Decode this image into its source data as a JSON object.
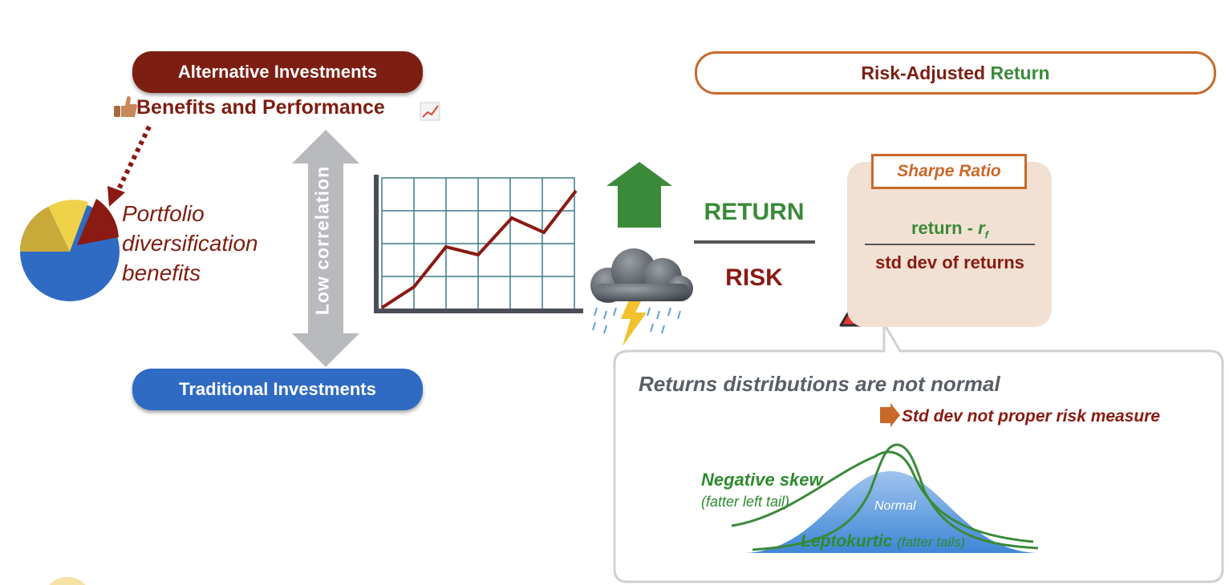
{
  "alternative": {
    "label": "Alternative Investments",
    "benefits": "Benefits and Performance"
  },
  "traditional": {
    "label": "Traditional Investments"
  },
  "portfolio": {
    "lines": [
      "Portfolio",
      "diversification",
      "benefits"
    ]
  },
  "correlation": {
    "label": "Low correlation"
  },
  "risk_adjusted": {
    "prefix": "Risk-Adjusted",
    "highlight": "Return"
  },
  "ratio": {
    "return_label": "RETURN",
    "risk_label": "RISK"
  },
  "sharpe": {
    "title": "Sharpe Ratio",
    "numerator_text": "return - ",
    "numerator_symbol": "r",
    "numerator_sub": "f",
    "denominator": "std dev of returns"
  },
  "callout": {
    "title": "Returns distributions are not normal",
    "conclusion": "Std dev not proper risk measure",
    "negative_skew": {
      "label": "Negative skew",
      "note": "(fatter left tail)"
    },
    "normal_label": "Normal",
    "leptokurtic": {
      "label": "Leptokurtic",
      "note": "(fatter tails)"
    }
  },
  "icons": [
    "thumbs-up-icon",
    "chart-increasing-icon",
    "pie-chart-icon",
    "up-arrow-icon",
    "storm-cloud-icon",
    "warning-icon",
    "right-arrow-icon"
  ],
  "colors": {
    "dark_red": "#7d1e12",
    "blue": "#2f6bc3",
    "green": "#3a8a3a",
    "orange": "#c8692a",
    "gray": "#b9babd"
  }
}
